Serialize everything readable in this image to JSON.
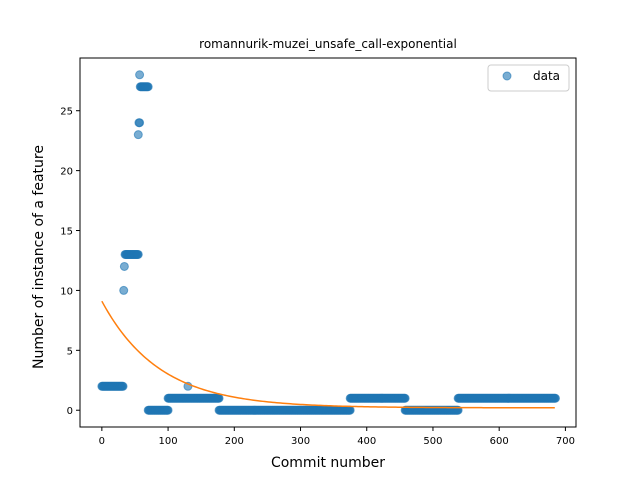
{
  "chart_data": {
    "type": "scatter",
    "title": "romannurik-muzei_unsafe_call-exponential",
    "xlabel": "Commit number",
    "ylabel": "Number of instance of a feature",
    "xlim": [
      -33,
      716
    ],
    "ylim": [
      -1.4,
      29.4
    ],
    "xticks": [
      0,
      100,
      200,
      300,
      400,
      500,
      600,
      700
    ],
    "yticks": [
      0,
      5,
      10,
      15,
      20,
      25
    ],
    "grid": false,
    "legend_position": "top-right",
    "colors": {
      "data": "#1f77b4",
      "fit": "#ff7f0e"
    },
    "series": [
      {
        "name": "data",
        "kind": "scatter",
        "segments": [
          {
            "x_from": 0,
            "x_to": 32,
            "y": 2
          },
          {
            "x_from": 33,
            "x_to": 33,
            "y": 10
          },
          {
            "x_from": 34,
            "x_to": 34,
            "y": 12
          },
          {
            "x_from": 35,
            "x_to": 55,
            "y": 13
          },
          {
            "x_from": 55,
            "x_to": 55,
            "y": 23
          },
          {
            "x_from": 56,
            "x_to": 57,
            "y": 24
          },
          {
            "x_from": 57,
            "x_to": 57,
            "y": 28
          },
          {
            "x_from": 58,
            "x_to": 70,
            "y": 27
          },
          {
            "x_from": 70,
            "x_to": 100,
            "y": 0
          },
          {
            "x_from": 100,
            "x_to": 177,
            "y": 1
          },
          {
            "x_from": 130,
            "x_to": 130,
            "y": 2
          },
          {
            "x_from": 177,
            "x_to": 375,
            "y": 0
          },
          {
            "x_from": 375,
            "x_to": 458,
            "y": 1
          },
          {
            "x_from": 458,
            "x_to": 538,
            "y": 0
          },
          {
            "x_from": 538,
            "x_to": 685,
            "y": 1
          }
        ]
      },
      {
        "name": "",
        "kind": "line",
        "fit": {
          "a": 8.9,
          "b": 0.0115,
          "c": 0.2,
          "x_from": 0,
          "x_to": 685
        }
      }
    ]
  }
}
